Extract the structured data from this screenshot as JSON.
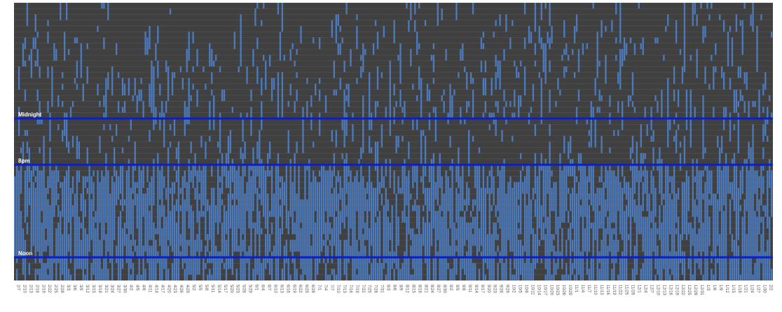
{
  "chart_data": {
    "type": "heatmap",
    "title": "",
    "xlabel": "",
    "ylabel": "",
    "rows": 48,
    "columns": 366,
    "colors": {
      "asleep": "#4b7bbe",
      "awake": "#404040",
      "reference_line": "#0a1fcc",
      "grid": "#7a7a7a"
    },
    "reference_lines": [
      {
        "label": "Midnight",
        "row": 20
      },
      {
        "label": "8pm",
        "row": 28
      },
      {
        "label": "Noon",
        "row": 44
      }
    ],
    "x_tick_labels": [
      "2/7",
      "2/10",
      "2/13",
      "2/16",
      "2/19",
      "2/22",
      "2/25",
      "2/28",
      "3/3",
      "3/6",
      "3/9",
      "3/12",
      "3/15",
      "3/18",
      "3/21",
      "3/24",
      "3/27",
      "3/30",
      "4/2",
      "4/5",
      "4/8",
      "4/11",
      "4/14",
      "4/17",
      "4/20",
      "4/23",
      "4/26",
      "4/29",
      "5/2",
      "5/5",
      "5/8",
      "5/11",
      "5/14",
      "5/17",
      "5/20",
      "5/23",
      "5/26",
      "5/29",
      "6/1",
      "6/4",
      "6/7",
      "6/10",
      "6/13",
      "6/16",
      "6/19",
      "6/22",
      "6/25",
      "6/28",
      "7/1",
      "7/4",
      "7/7",
      "7/10",
      "7/13",
      "7/16",
      "7/19",
      "7/22",
      "7/25",
      "7/28",
      "7/31",
      "8/3",
      "8/6",
      "8/9",
      "8/12",
      "8/15",
      "8/18",
      "8/21",
      "8/24",
      "8/27",
      "8/30",
      "9/2",
      "9/5",
      "9/8",
      "9/11",
      "9/14",
      "9/17",
      "9/20",
      "9/23",
      "9/26",
      "9/29",
      "10/2",
      "10/5",
      "10/8",
      "10/11",
      "10/14",
      "10/17",
      "10/20",
      "10/23",
      "10/26",
      "10/29",
      "11/1",
      "11/4",
      "11/7",
      "11/10",
      "11/13",
      "11/16",
      "11/19",
      "11/22",
      "11/25",
      "11/28",
      "12/1",
      "12/4",
      "12/7",
      "12/10",
      "12/13",
      "12/16",
      "12/19",
      "12/22",
      "12/25",
      "12/28",
      "12/31",
      "1/3",
      "1/6",
      "1/9",
      "1/12",
      "1/15",
      "1/18",
      "1/21",
      "1/24",
      "1/27",
      "1/30",
      "2/2"
    ],
    "grid": true,
    "legend": "none"
  }
}
